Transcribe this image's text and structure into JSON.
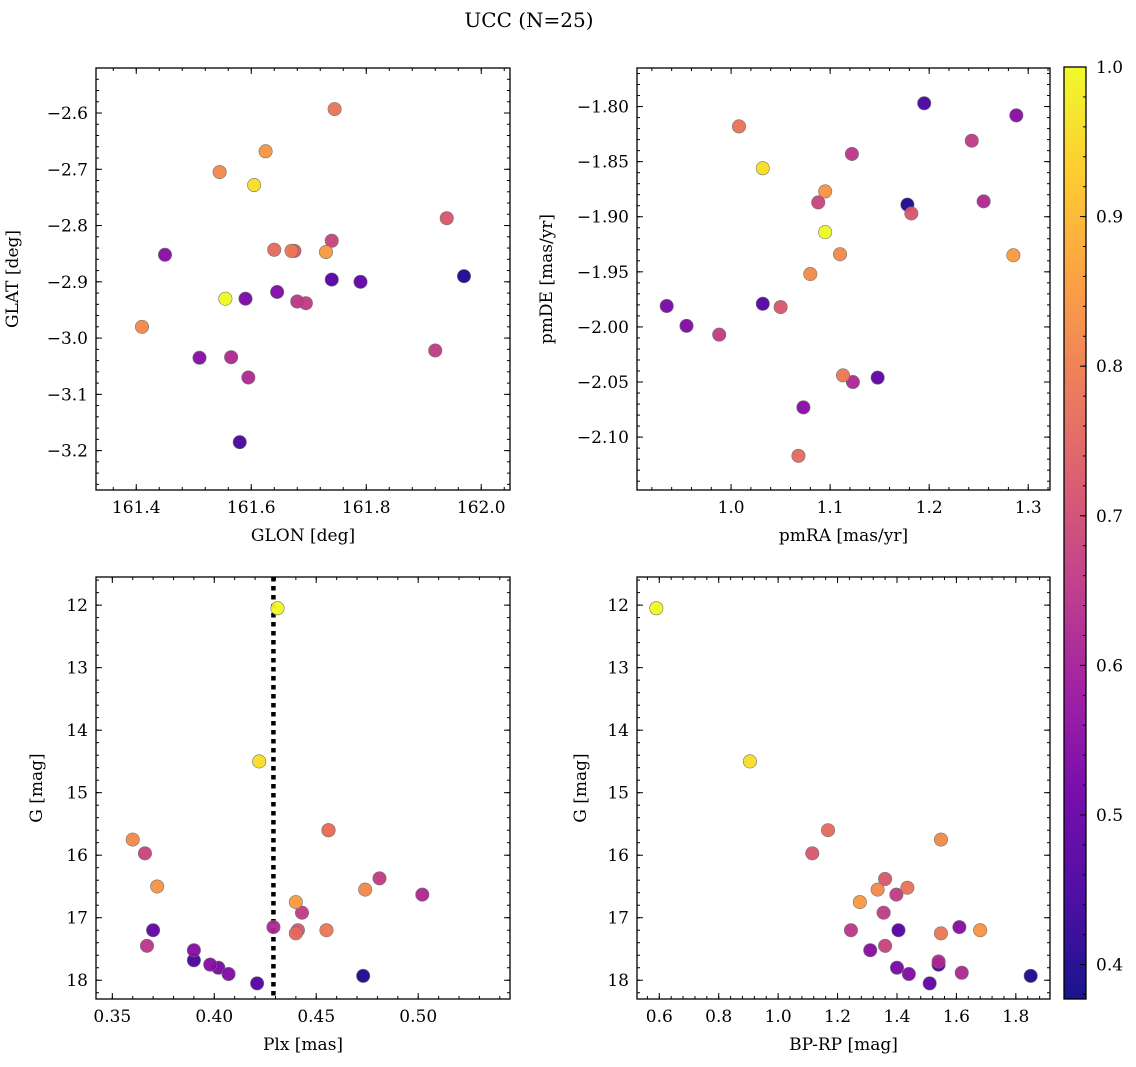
{
  "figure_title": "UCC (N=25)",
  "colormap": [
    "#0d0887",
    "#46039f",
    "#7201a8",
    "#9c179e",
    "#bd3786",
    "#d8576b",
    "#ed7953",
    "#fb9f3a",
    "#fdca26",
    "#f0f921"
  ],
  "chart_data": [
    {
      "id": "glon-glat",
      "type": "scatter",
      "xlabel": "GLON [deg]",
      "ylabel": "GLAT [deg]",
      "xlim": [
        161.33,
        162.05
      ],
      "ylim": [
        -3.27,
        -2.52
      ],
      "xticks": [
        161.4,
        161.6,
        161.8,
        162.0
      ],
      "xtick_labels": [
        "161.4",
        "161.6",
        "161.8",
        "162.0"
      ],
      "yticks": [
        -3.2,
        -3.1,
        -3.0,
        -2.9,
        -2.8,
        -2.7,
        -2.6
      ],
      "ytick_labels": [
        "−3.2",
        "−3.1",
        "−3.0",
        "−2.9",
        "−2.8",
        "−2.7",
        "−2.6"
      ],
      "x": [
        161.555,
        161.605,
        161.545,
        161.625,
        161.745,
        161.41,
        161.67,
        161.73,
        161.64,
        161.675,
        161.68,
        161.695,
        161.74,
        161.94,
        161.92,
        161.565,
        161.595,
        161.51,
        161.58,
        161.45,
        161.59,
        161.645,
        161.74,
        161.79,
        161.97
      ],
      "y": [
        -2.93,
        -2.728,
        -2.705,
        -2.668,
        -2.593,
        -2.98,
        -2.845,
        -2.847,
        -2.843,
        -2.845,
        -2.935,
        -2.938,
        -2.827,
        -2.787,
        -3.022,
        -3.034,
        -3.07,
        -3.035,
        -3.185,
        -2.852,
        -2.93,
        -2.918,
        -2.896,
        -2.9,
        -2.89
      ]
    },
    {
      "id": "pm",
      "type": "scatter",
      "xlabel": "pmRA [mas/yr]",
      "ylabel": "pmDE [mas/yr]",
      "xlim": [
        0.905,
        1.322
      ],
      "ylim": [
        -2.148,
        -1.765
      ],
      "xticks": [
        1.0,
        1.1,
        1.2,
        1.3
      ],
      "xtick_labels": [
        "1.0",
        "1.1",
        "1.2",
        "1.3"
      ],
      "yticks": [
        -2.1,
        -2.05,
        -2.0,
        -1.95,
        -1.9,
        -1.85,
        -1.8
      ],
      "ytick_labels": [
        "−2.10",
        "−2.05",
        "−2.00",
        "−1.95",
        "−1.90",
        "−1.85",
        "−1.80"
      ],
      "x": [
        1.095,
        1.032,
        1.08,
        1.095,
        1.008,
        1.11,
        1.113,
        1.285,
        1.068,
        1.182,
        1.122,
        1.243,
        1.088,
        1.05,
        0.988,
        1.123,
        1.255,
        1.073,
        1.195,
        1.288,
        0.935,
        0.955,
        1.032,
        1.148,
        1.178
      ],
      "y": [
        -1.914,
        -1.856,
        -1.952,
        -1.877,
        -1.818,
        -1.934,
        -2.044,
        -1.935,
        -2.117,
        -1.897,
        -1.843,
        -1.831,
        -1.887,
        -1.982,
        -2.007,
        -2.05,
        -1.886,
        -2.073,
        -1.797,
        -1.808,
        -1.981,
        -1.999,
        -1.979,
        -2.046,
        -1.889
      ]
    },
    {
      "id": "plx-g",
      "type": "scatter",
      "xlabel": "Plx [mas]",
      "ylabel": "G [mag]",
      "xlim": [
        0.342,
        0.545
      ],
      "ylim": [
        18.3,
        11.55
      ],
      "xticks": [
        0.35,
        0.4,
        0.45,
        0.5
      ],
      "xtick_labels": [
        "0.35",
        "0.40",
        "0.45",
        "0.50"
      ],
      "yticks": [
        12,
        13,
        14,
        15,
        16,
        17,
        18
      ],
      "ytick_labels": [
        "12",
        "13",
        "14",
        "15",
        "16",
        "17",
        "18"
      ],
      "vline_x": 0.429,
      "x": [
        0.431,
        0.422,
        0.36,
        0.372,
        0.456,
        0.474,
        0.455,
        0.44,
        0.44,
        0.441,
        0.367,
        0.481,
        0.366,
        0.456,
        0.443,
        0.502,
        0.429,
        0.39,
        0.39,
        0.398,
        0.402,
        0.407,
        0.421,
        0.37,
        0.473
      ],
      "y": [
        12.05,
        14.5,
        15.75,
        16.5,
        15.6,
        16.55,
        17.2,
        16.75,
        17.25,
        17.2,
        17.45,
        16.37,
        15.97,
        15.6,
        16.92,
        16.63,
        17.15,
        17.52,
        17.68,
        17.75,
        17.8,
        17.9,
        18.05,
        17.2,
        17.93
      ]
    },
    {
      "id": "cmd",
      "type": "scatter",
      "xlabel": "BP-RP [mag]",
      "ylabel": "G [mag]",
      "xlim": [
        0.525,
        1.915
      ],
      "ylim": [
        18.3,
        11.55
      ],
      "xticks": [
        0.6,
        0.8,
        1.0,
        1.2,
        1.4,
        1.6,
        1.8
      ],
      "xtick_labels": [
        "0.6",
        "0.8",
        "1.0",
        "1.2",
        "1.4",
        "1.6",
        "1.8"
      ],
      "yticks": [
        12,
        13,
        14,
        15,
        16,
        17,
        18
      ],
      "ytick_labels": [
        "12",
        "13",
        "14",
        "15",
        "16",
        "17",
        "18"
      ],
      "x": [
        0.59,
        0.905,
        1.548,
        1.68,
        1.435,
        1.335,
        1.548,
        1.275,
        1.168,
        1.36,
        1.245,
        1.355,
        1.36,
        1.115,
        1.398,
        1.618,
        1.54,
        1.31,
        1.54,
        1.61,
        1.4,
        1.44,
        1.405,
        1.51,
        1.85
      ],
      "y": [
        12.05,
        14.5,
        15.75,
        17.2,
        16.52,
        16.55,
        17.25,
        16.75,
        15.6,
        16.38,
        17.2,
        16.92,
        17.45,
        15.97,
        16.63,
        17.88,
        17.7,
        17.52,
        17.75,
        17.15,
        17.8,
        17.9,
        17.2,
        18.05,
        17.93
      ]
    }
  ],
  "points_color": [
    1.0,
    0.96,
    0.82,
    0.84,
    0.78,
    0.82,
    0.79,
    0.85,
    0.76,
    0.72,
    0.65,
    0.66,
    0.68,
    0.72,
    0.66,
    0.62,
    0.62,
    0.55,
    0.45,
    0.55,
    0.53,
    0.54,
    0.47,
    0.49,
    0.4
  ],
  "colorbar": {
    "vmin": 0.377,
    "vmax": 1.0,
    "ticks": [
      0.4,
      0.5,
      0.6,
      0.7,
      0.8,
      0.9,
      1.0
    ],
    "tick_labels": [
      "0.4",
      "0.5",
      "0.6",
      "0.7",
      "0.8",
      "0.9",
      "1.0"
    ]
  }
}
